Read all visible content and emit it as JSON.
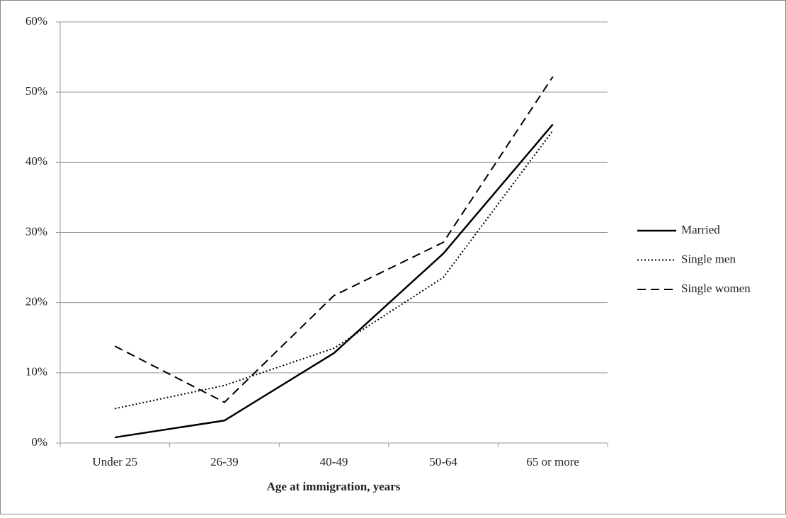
{
  "chart_data": {
    "type": "line",
    "x_label": "Age at immigration, years",
    "categories": [
      "Under 25",
      "26-39",
      "40-49",
      "50-64",
      "65 or more"
    ],
    "series": [
      {
        "name": "Married",
        "color": "#000000",
        "style": "solid",
        "values": [
          0.8,
          3.2,
          12.8,
          27,
          45.4
        ]
      },
      {
        "name": "Single men",
        "color": "#000000",
        "style": "dotted",
        "values": [
          4.9,
          8.2,
          13.5,
          23.6,
          44.5
        ]
      },
      {
        "name": "Single women",
        "color": "#000000",
        "style": "dashed",
        "values": [
          13.8,
          5.8,
          21,
          28.6,
          52.2
        ]
      }
    ],
    "ylim": [
      0,
      60
    ],
    "yticks": [
      {
        "value": 0,
        "label": "0%"
      },
      {
        "value": 10,
        "label": "10%"
      },
      {
        "value": 20,
        "label": "20%"
      },
      {
        "value": 30,
        "label": "30%"
      },
      {
        "value": 40,
        "label": "40%"
      },
      {
        "value": 50,
        "label": "50%"
      },
      {
        "value": 60,
        "label": "60%"
      }
    ],
    "grid": true,
    "legend": "right"
  }
}
